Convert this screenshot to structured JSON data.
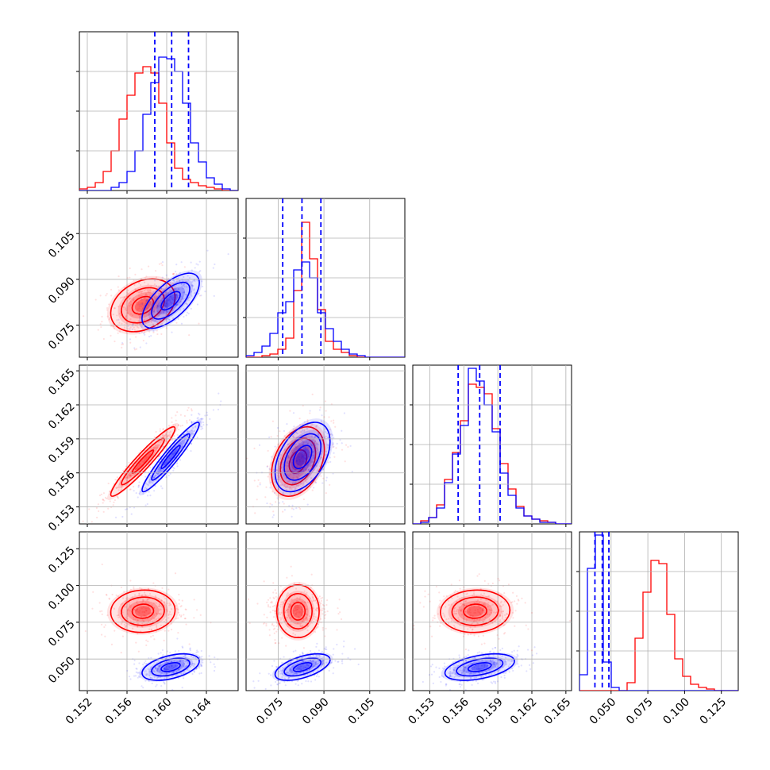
{
  "chart_data": {
    "type": "scatter",
    "subtype": "corner-plot",
    "title": "",
    "grid": true,
    "colors": {
      "red": "#ff0000",
      "blue": "#0000ff"
    },
    "parameters": [
      {
        "id": "p1",
        "range": [
          0.1512,
          0.1672
        ],
        "ticks": [
          0.152,
          0.156,
          0.16,
          0.164
        ],
        "tick_labels": [
          "0.152",
          "0.156",
          "0.160",
          "0.164"
        ]
      },
      {
        "id": "p2",
        "range": [
          0.0645,
          0.1165
        ],
        "ticks": [
          0.075,
          0.09,
          0.105
        ],
        "tick_labels": [
          "0.075",
          "0.090",
          "0.105"
        ]
      },
      {
        "id": "p3",
        "range": [
          0.1515,
          0.1655
        ],
        "ticks": [
          0.153,
          0.156,
          0.159,
          0.162,
          0.165
        ],
        "tick_labels": [
          "0.153",
          "0.156",
          "0.159",
          "0.162",
          "0.165"
        ]
      },
      {
        "id": "p4",
        "range": [
          0.0285,
          0.1365
        ],
        "ticks": [
          0.05,
          0.075,
          0.1,
          0.125
        ],
        "tick_labels": [
          "0.050",
          "0.075",
          "0.100",
          "0.125"
        ]
      }
    ],
    "series": [
      {
        "color": "#ff0000",
        "means": [
          0.1576,
          0.0815,
          0.157,
          0.0825
        ],
        "sigmas": [
          0.0018,
          0.0048,
          0.0017,
          0.008
        ],
        "correlations": {
          "1-2": 0.3,
          "1-3": 0.95,
          "1-4": 0.05,
          "2-3": 0.35,
          "2-4": 0.0,
          "3-4": 0.05
        }
      },
      {
        "color": "#0000ff",
        "means": [
          0.1604,
          0.083,
          0.1574,
          0.0445
        ],
        "sigmas": [
          0.0016,
          0.005,
          0.0017,
          0.005
        ],
        "correlations": {
          "1-2": 0.65,
          "1-3": 0.95,
          "1-4": 0.45,
          "2-3": 0.45,
          "2-4": 0.55,
          "3-4": 0.45
        }
      }
    ],
    "quantile_lines": {
      "color": "#0000ff",
      "values": [
        [
          0.1588,
          0.1605,
          0.1622
        ],
        [
          0.0765,
          0.0828,
          0.089
        ],
        [
          0.1555,
          0.1574,
          0.1592
        ],
        [
          0.039,
          0.044,
          0.0485
        ]
      ]
    },
    "histograms": [
      {
        "red": [
          0.01,
          0.02,
          0.05,
          0.12,
          0.25,
          0.45,
          0.6,
          0.74,
          0.78,
          0.74,
          0.55,
          0.3,
          0.14,
          0.07,
          0.05,
          0.03,
          0.02,
          0.01,
          0.0,
          0.0
        ],
        "blue": [
          0.0,
          0.0,
          0.0,
          0.0,
          0.02,
          0.05,
          0.12,
          0.25,
          0.48,
          0.68,
          0.84,
          0.83,
          0.75,
          0.55,
          0.3,
          0.18,
          0.08,
          0.04,
          0.01,
          0.0
        ]
      },
      {
        "red": [
          0.0,
          0.0,
          0.01,
          0.02,
          0.05,
          0.12,
          0.42,
          0.85,
          0.62,
          0.3,
          0.1,
          0.05,
          0.03,
          0.01,
          0.0,
          0.0,
          0.0,
          0.0,
          0.0,
          0.0
        ],
        "blue": [
          0.01,
          0.03,
          0.07,
          0.15,
          0.28,
          0.35,
          0.55,
          0.6,
          0.5,
          0.28,
          0.18,
          0.1,
          0.05,
          0.02,
          0.01,
          0.0,
          0.0,
          0.0,
          0.0,
          0.0
        ]
      },
      {
        "red": [
          0.0,
          0.02,
          0.04,
          0.12,
          0.28,
          0.45,
          0.65,
          0.88,
          0.86,
          0.82,
          0.6,
          0.38,
          0.22,
          0.11,
          0.05,
          0.03,
          0.02,
          0.01,
          0.0,
          0.0
        ],
        "blue": [
          0.0,
          0.01,
          0.04,
          0.1,
          0.26,
          0.44,
          0.62,
          0.98,
          0.9,
          0.75,
          0.58,
          0.32,
          0.18,
          0.1,
          0.05,
          0.03,
          0.01,
          0.01,
          0.0,
          0.0
        ]
      },
      {
        "red": [
          0.0,
          0.0,
          0.0,
          0.0,
          0.0,
          0.0,
          0.05,
          0.33,
          0.62,
          0.82,
          0.8,
          0.48,
          0.2,
          0.09,
          0.04,
          0.02,
          0.01,
          0.0,
          0.0,
          0.0
        ],
        "blue": [
          0.1,
          0.77,
          0.98,
          0.18,
          0.02,
          0.0,
          0.0,
          0.0,
          0.0,
          0.0,
          0.0,
          0.0,
          0.0,
          0.0,
          0.0,
          0.0,
          0.0,
          0.0,
          0.0,
          0.0
        ]
      }
    ]
  }
}
